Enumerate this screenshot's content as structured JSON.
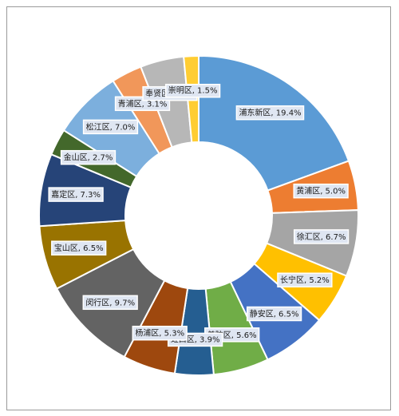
{
  "chart_data": {
    "type": "pie",
    "variant": "donut",
    "title": "",
    "legend": "none",
    "slices": [
      {
        "label": "浦东新区",
        "value": 19.4,
        "display": "浦东新区, 19.4%",
        "color": "#5b9bd5"
      },
      {
        "label": "黄浦区",
        "value": 5.0,
        "display": "黄浦区, 5.0%",
        "color": "#ed7d31"
      },
      {
        "label": "徐汇区",
        "value": 6.7,
        "display": "徐汇区, 6.7%",
        "color": "#a5a5a5"
      },
      {
        "label": "长宁区",
        "value": 5.2,
        "display": "长宁区, 5.2%",
        "color": "#ffc000"
      },
      {
        "label": "静安区",
        "value": 6.5,
        "display": "静安区, 6.5%",
        "color": "#4472c4"
      },
      {
        "label": "普陀区",
        "value": 5.6,
        "display": "普陀区, 5.6%",
        "color": "#70ad47"
      },
      {
        "label": "虹口区",
        "value": 3.9,
        "display": "虹口区, 3.9%",
        "color": "#255e91"
      },
      {
        "label": "杨浦区",
        "value": 5.3,
        "display": "杨浦区, 5.3%",
        "color": "#9e480e"
      },
      {
        "label": "闵行区",
        "value": 9.7,
        "display": "闵行区, 9.7%",
        "color": "#636363"
      },
      {
        "label": "宝山区",
        "value": 6.5,
        "display": "宝山区, 6.5%",
        "color": "#997300"
      },
      {
        "label": "嘉定区",
        "value": 7.3,
        "display": "嘉定区, 7.3%",
        "color": "#264478"
      },
      {
        "label": "金山区",
        "value": 2.7,
        "display": "金山区, 2.7%",
        "color": "#43682b"
      },
      {
        "label": "松江区",
        "value": 7.0,
        "display": "松江区, 7.0%",
        "color": "#7cafdd"
      },
      {
        "label": "青浦区",
        "value": 3.1,
        "display": "青浦区, 3.1%",
        "color": "#f1975a"
      },
      {
        "label": "奉贤区",
        "value": 4.4,
        "display": "奉贤区, 4.4%",
        "color": "#b7b7b7"
      },
      {
        "label": "崇明区",
        "value": 1.5,
        "display": "崇明区, 1.5%",
        "color": "#ffcd33"
      }
    ]
  }
}
